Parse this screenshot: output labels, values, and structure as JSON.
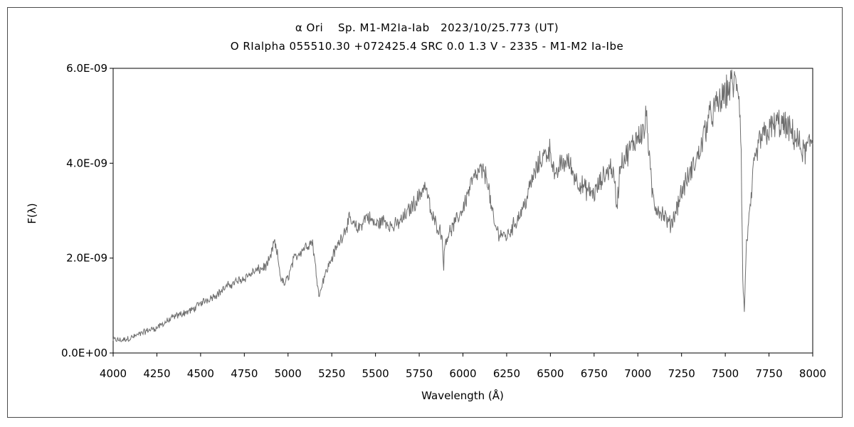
{
  "chart_data": {
    "type": "line",
    "title": "α Ori　 Sp. M1-M2Ia-Iab　2023/10/25.773 (UT)",
    "subtitle": "O RIalpha 055510.30 +072425.4 SRC 0.0 1.3 V - 2335 - M1-M2 Ia-Ibe",
    "xlabel": "Wavelength (Å)",
    "ylabel": "F(λ)",
    "xlim": [
      4000,
      8000
    ],
    "ylim": [
      0,
      6e-09
    ],
    "x_ticks": [
      4000,
      4250,
      4500,
      4750,
      5000,
      5250,
      5500,
      5750,
      6000,
      6250,
      6500,
      6750,
      7000,
      7250,
      7500,
      7750,
      8000
    ],
    "x_tick_labels": [
      "4000",
      "4250",
      "4500",
      "4750",
      "5000",
      "5250",
      "5500",
      "5750",
      "6000",
      "6250",
      "6500",
      "6750",
      "7000",
      "7250",
      "7500",
      "7750",
      "8000"
    ],
    "y_ticks": [
      0,
      2e-09,
      4e-09,
      6e-09
    ],
    "y_tick_labels": [
      "0.0E+00",
      "2.0E-09",
      "4.0E-09",
      "6.0E-09"
    ],
    "grid": false,
    "line_color": "#6e6e6e",
    "series": [
      {
        "x": [
          4000,
          4050,
          4100,
          4150,
          4200,
          4250,
          4300,
          4350,
          4400,
          4450,
          4500,
          4550,
          4600,
          4650,
          4700,
          4750,
          4800,
          4850,
          4880,
          4900,
          4920,
          4940,
          4960,
          4980,
          5000,
          5030,
          5060,
          5100,
          5140,
          5160,
          5180,
          5200,
          5250,
          5300,
          5350,
          5400,
          5450,
          5500,
          5550,
          5600,
          5650,
          5700,
          5750,
          5780,
          5800,
          5820,
          5850,
          5880,
          5890,
          5900,
          5950,
          6000,
          6050,
          6100,
          6140,
          6160,
          6180,
          6200,
          6250,
          6300,
          6350,
          6400,
          6450,
          6500,
          6530,
          6550,
          6600,
          6650,
          6700,
          6750,
          6800,
          6850,
          6870,
          6880,
          6900,
          6950,
          7000,
          7040,
          7050,
          7060,
          7080,
          7100,
          7150,
          7180,
          7200,
          7250,
          7300,
          7350,
          7400,
          7450,
          7500,
          7530,
          7570,
          7580,
          7590,
          7600,
          7610,
          7620,
          7640,
          7660,
          7680,
          7700,
          7750,
          7800,
          7850,
          7900,
          7950,
          8000
        ],
        "y": [
          2.8e-10,
          2.7e-10,
          3.2e-10,
          3.9e-10,
          4.8e-10,
          5.3e-10,
          6.5e-10,
          7.6e-10,
          8.4e-10,
          9e-10,
          1.05e-09,
          1.15e-09,
          1.25e-09,
          1.4e-09,
          1.5e-09,
          1.58e-09,
          1.7e-09,
          1.78e-09,
          1.85e-09,
          2e-09,
          2.35e-09,
          2.05e-09,
          1.55e-09,
          1.45e-09,
          1.6e-09,
          1.95e-09,
          2.1e-09,
          2.25e-09,
          2.35e-09,
          1.7e-09,
          1.2e-09,
          1.55e-09,
          2e-09,
          2.4e-09,
          2.8e-09,
          2.6e-09,
          2.9e-09,
          2.7e-09,
          2.8e-09,
          2.65e-09,
          2.8e-09,
          3.05e-09,
          3.3e-09,
          3.55e-09,
          3.3e-09,
          2.9e-09,
          2.7e-09,
          2.5e-09,
          1.85e-09,
          2.4e-09,
          2.7e-09,
          3.05e-09,
          3.6e-09,
          3.85e-09,
          3.7e-09,
          3.1e-09,
          2.7e-09,
          2.55e-09,
          2.45e-09,
          2.75e-09,
          3.1e-09,
          3.7e-09,
          4.1e-09,
          4.3e-09,
          3.6e-09,
          3.95e-09,
          4.05e-09,
          3.65e-09,
          3.45e-09,
          3.35e-09,
          3.7e-09,
          3.95e-09,
          3.5e-09,
          3.05e-09,
          4e-09,
          4.25e-09,
          4.6e-09,
          4.7e-09,
          5.1e-09,
          4.4e-09,
          3.4e-09,
          3.1e-09,
          2.9e-09,
          2.7e-09,
          2.8e-09,
          3.4e-09,
          3.8e-09,
          4.2e-09,
          4.9e-09,
          5.2e-09,
          5.45e-09,
          5.65e-09,
          5.7e-09,
          5.4e-09,
          4.5e-09,
          1.5e-09,
          8.5e-10,
          2.3e-09,
          2.9e-09,
          3.8e-09,
          4.2e-09,
          4.5e-09,
          4.7e-09,
          4.85e-09,
          4.75e-09,
          4.55e-09,
          4.2e-09,
          4.5e-09
        ]
      }
    ]
  }
}
